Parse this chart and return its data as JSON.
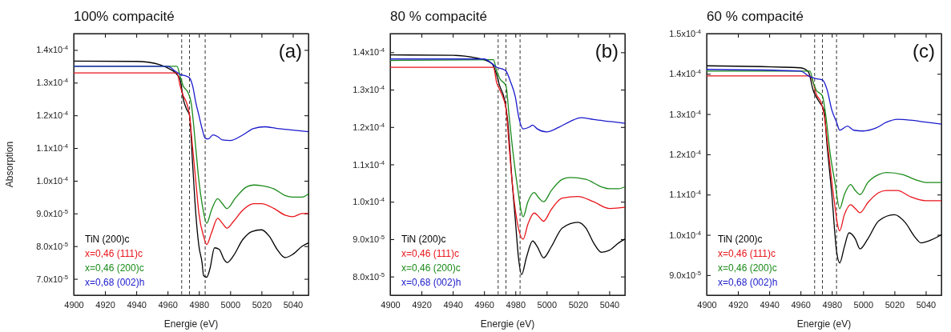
{
  "chart_data": [
    {
      "type": "line",
      "title": "100% compacité",
      "xlabel": "Energie (eV)",
      "ylabel": "Absorption",
      "annotations": [
        "(a)"
      ],
      "legend": "bottom left",
      "line_style": "solid",
      "marker": "none",
      "xlim": [
        4900,
        5050
      ],
      "xticks": [
        4900,
        4920,
        4940,
        4960,
        4980,
        5000,
        5020,
        5040
      ],
      "ylim": [
        6.5e-05,
        0.000145
      ],
      "yticks": [
        {
          "value": 7e-05,
          "label": "7.0x10$^{-5}$"
        },
        {
          "value": 8e-05,
          "label": "8.0x10$^{-5}$"
        },
        {
          "value": 9e-05,
          "label": "9.0x10$^{-5}$"
        },
        {
          "value": 0.0001,
          "label": "1.0x10$^{-4}$"
        },
        {
          "value": 0.00011,
          "label": "1.1x10$^{-4}$"
        },
        {
          "value": 0.00012,
          "label": "1.2x10$^{-4}$"
        },
        {
          "value": 0.00013,
          "label": "1.3x10$^{-4}$"
        },
        {
          "value": 0.00014,
          "label": "1.4x10$^{-4}$"
        }
      ],
      "ref_lines": [
        {
          "axis": "x",
          "value": 4969,
          "color": "#333333",
          "line_style": "dashed"
        },
        {
          "axis": "x",
          "value": 4974,
          "color": "#333333",
          "line_style": "dashed"
        },
        {
          "axis": "x",
          "value": 4984,
          "color": "#333333",
          "line_style": "dashed"
        }
      ],
      "series": [
        {
          "name": "TiN (200)c",
          "color": "#000000",
          "x": [
            4900,
            4940,
            4955,
            4960,
            4965,
            4968,
            4970,
            4972,
            4974,
            4976,
            4978,
            4980,
            4982,
            4983,
            4985,
            4987,
            4990,
            4993,
            4996,
            4998,
            5002,
            5008,
            5014,
            5020,
            5025,
            5030,
            5035,
            5040,
            5046,
            5050
          ],
          "values": [
            0.0001366,
            0.0001365,
            0.0001355,
            0.0001345,
            0.000133,
            0.000131,
            0.000125,
            0.000122,
            0.00012,
            0.000105,
            9e-05,
            8e-05,
            7.5e-05,
            7.1e-05,
            7.05e-05,
            7.3e-05,
            7.95e-05,
            7.9e-05,
            7.6e-05,
            7.5e-05,
            7.7e-05,
            8.2e-05,
            8.45e-05,
            8.5e-05,
            8.3e-05,
            7.9e-05,
            7.65e-05,
            7.75e-05,
            8e-05,
            8.1e-05
          ]
        },
        {
          "name": "x=0,46 (111)c",
          "color": "#e8141b",
          "x": [
            4900,
            4966,
            4968,
            4970,
            4972,
            4974,
            4976,
            4978,
            4980,
            4983,
            4985,
            4988,
            4992,
            4995,
            4998,
            5002,
            5008,
            5015,
            5020,
            5028,
            5035,
            5040,
            5046,
            5050
          ],
          "values": [
            0.000133,
            0.000133,
            0.000129,
            0.000126,
            0.000124,
            0.00012,
            0.00011,
            0.0001,
            9e-05,
            8.3e-05,
            8.05e-05,
            8.4e-05,
            8.85e-05,
            8.7e-05,
            8.55e-05,
            8.75e-05,
            9.1e-05,
            9.3e-05,
            9.3e-05,
            9.15e-05,
            8.95e-05,
            8.9e-05,
            9e-05,
            9e-05
          ]
        },
        {
          "name": "x=0,46 (200)c",
          "color": "#1a8a1a",
          "x": [
            4900,
            4966,
            4968,
            4970,
            4973,
            4975,
            4978,
            4980,
            4982,
            4985,
            4988,
            4992,
            4995,
            4998,
            5003,
            5010,
            5015,
            5020,
            5028,
            5035,
            5040,
            5046,
            5050
          ],
          "values": [
            0.000135,
            0.000135,
            0.000132,
            0.000129,
            0.000127,
            0.000124,
            0.00011,
            0.0001,
            9.3e-05,
            8.7e-05,
            9.1e-05,
            9.45e-05,
            9.3e-05,
            9.15e-05,
            9.45e-05,
            9.8e-05,
            9.87e-05,
            9.85e-05,
            9.75e-05,
            9.55e-05,
            9.5e-05,
            9.5e-05,
            9.6e-05
          ]
        },
        {
          "name": "x=0,68 (002)h",
          "color": "#1a1acc",
          "x": [
            4900,
            4960,
            4965,
            4968,
            4972,
            4974,
            4976,
            4978,
            4980,
            4982,
            4984,
            4986,
            4989,
            4992,
            4995,
            5000,
            5008,
            5015,
            5022,
            5030,
            5040,
            5050
          ],
          "values": [
            0.000135,
            0.000135,
            0.0001335,
            0.0001325,
            0.000132,
            0.0001315,
            0.000129,
            0.000124,
            0.00012,
            0.000116,
            0.000113,
            0.0001128,
            0.000114,
            0.0001135,
            0.0001125,
            0.0001123,
            0.000114,
            0.000116,
            0.0001165,
            0.000116,
            0.0001155,
            0.000115
          ]
        }
      ]
    },
    {
      "type": "line",
      "title": "80 % compacité",
      "xlabel": "Energie (eV)",
      "annotations": [
        "(b)"
      ],
      "legend": "bottom left",
      "line_style": "solid",
      "marker": "none",
      "xlim": [
        4900,
        5050
      ],
      "xticks": [
        4900,
        4920,
        4940,
        4960,
        4980,
        5000,
        5020,
        5040
      ],
      "ylim": [
        7.5e-05,
        0.000145
      ],
      "yticks": [
        {
          "value": 8e-05,
          "label": "8.0x10$^{-5}$"
        },
        {
          "value": 9e-05,
          "label": "9.0x10$^{-5}$"
        },
        {
          "value": 0.0001,
          "label": "1.0x10$^{-4}$"
        },
        {
          "value": 0.00011,
          "label": "1.1x10$^{-4}$"
        },
        {
          "value": 0.00012,
          "label": "1.2x10$^{-4}$"
        },
        {
          "value": 0.00013,
          "label": "1.3x10$^{-4}$"
        },
        {
          "value": 0.00014,
          "label": "1.4x10$^{-4}$"
        }
      ],
      "ref_lines": [
        {
          "axis": "x",
          "value": 4969,
          "color": "#333333",
          "line_style": "dashed"
        },
        {
          "axis": "x",
          "value": 4974,
          "color": "#333333",
          "line_style": "dashed"
        },
        {
          "axis": "x",
          "value": 4983,
          "color": "#333333",
          "line_style": "dashed"
        }
      ],
      "series": [
        {
          "name": "TiN (200)c",
          "color": "#000000",
          "x": [
            4900,
            4940,
            4955,
            4965,
            4968,
            4970,
            4973,
            4975,
            4978,
            4980,
            4982,
            4984,
            4987,
            4991,
            4994,
            4998,
            5003,
            5010,
            5020,
            5025,
            5030,
            5035,
            5040,
            5046,
            5050
          ],
          "values": [
            0.0001393,
            0.0001392,
            0.0001385,
            0.000137,
            0.000134,
            0.000131,
            0.0001275,
            0.000122,
            0.000105,
            9.5e-05,
            8.5e-05,
            8.05e-05,
            8.5e-05,
            8.95e-05,
            8.8e-05,
            8.5e-05,
            8.8e-05,
            9.3e-05,
            9.45e-05,
            9.3e-05,
            8.9e-05,
            8.65e-05,
            8.7e-05,
            8.9e-05,
            9e-05
          ]
        },
        {
          "name": "x=0,46 (111)c",
          "color": "#e8141b",
          "x": [
            4900,
            4966,
            4968,
            4970,
            4972,
            4974,
            4976,
            4978,
            4981,
            4985,
            4988,
            4992,
            4995,
            4998,
            5003,
            5010,
            5020,
            5030,
            5040,
            5050
          ],
          "values": [
            0.000136,
            0.000136,
            0.000132,
            0.00013,
            0.000128,
            0.000125,
            0.000115,
            0.000105,
            9.5e-05,
            9e-05,
            9.4e-05,
            9.7e-05,
            9.6e-05,
            9.48e-05,
            9.8e-05,
            0.000101,
            0.0001014,
            0.0001,
            9.82e-05,
            9.85e-05
          ]
        },
        {
          "name": "x=0,46 (200)c",
          "color": "#1a8a1a",
          "x": [
            4900,
            4966,
            4968,
            4970,
            4974,
            4976,
            4978,
            4981,
            4985,
            4988,
            4992,
            4995,
            4998,
            5003,
            5010,
            5015,
            5025,
            5035,
            5040,
            5046,
            5050
          ],
          "values": [
            0.0001378,
            0.000138,
            0.000135,
            0.000133,
            0.000131,
            0.000123,
            0.000115,
            0.000105,
            9.6e-05,
            0.0001,
            0.0001025,
            0.000101,
            0.0001,
            0.000103,
            0.000106,
            0.0001065,
            0.000106,
            0.000104,
            0.0001035,
            0.0001035,
            0.000104
          ]
        },
        {
          "name": "x=0,68 (002)h",
          "color": "#1a1acc",
          "x": [
            4900,
            4960,
            4965,
            4968,
            4972,
            4974,
            4977,
            4980,
            4982,
            4985,
            4989,
            4991,
            4994,
            5000,
            5008,
            5015,
            5022,
            5030,
            5040,
            5050
          ],
          "values": [
            0.0001382,
            0.0001382,
            0.000137,
            0.000136,
            0.0001355,
            0.000135,
            0.000132,
            0.000128,
            0.000123,
            0.0001195,
            0.00012,
            0.0001205,
            0.0001195,
            0.0001187,
            0.00012,
            0.0001215,
            0.0001225,
            0.000122,
            0.0001215,
            0.000121
          ]
        }
      ]
    },
    {
      "type": "line",
      "title": "60 % compacité",
      "xlabel": "Energie (eV)",
      "annotations": [
        "(c)"
      ],
      "legend": "bottom left",
      "line_style": "solid",
      "marker": "none",
      "xlim": [
        4900,
        5050
      ],
      "xticks": [
        4900,
        4920,
        4940,
        4960,
        4980,
        5000,
        5020,
        5040
      ],
      "ylim": [
        8.5e-05,
        0.00015
      ],
      "yticks": [
        {
          "value": 9e-05,
          "label": "9.0x10$^{-5}$"
        },
        {
          "value": 0.0001,
          "label": "1.0x10$^{-4}$"
        },
        {
          "value": 0.00011,
          "label": "1.1x10$^{-4}$"
        },
        {
          "value": 0.00012,
          "label": "1.2x10$^{-4}$"
        },
        {
          "value": 0.00013,
          "label": "1.3x10$^{-4}$"
        },
        {
          "value": 0.00014,
          "label": "1.4x10$^{-4}$"
        },
        {
          "value": 0.00015,
          "label": "1.5x10$^{-4}$"
        }
      ],
      "ref_lines": [
        {
          "axis": "x",
          "value": 4969,
          "color": "#333333",
          "line_style": "dashed"
        },
        {
          "axis": "x",
          "value": 4974,
          "color": "#333333",
          "line_style": "dashed"
        },
        {
          "axis": "x",
          "value": 4983,
          "color": "#333333",
          "line_style": "dashed"
        }
      ],
      "series": [
        {
          "name": "TiN (200)c",
          "color": "#000000",
          "x": [
            4900,
            4960,
            4965,
            4968,
            4972,
            4975,
            4977,
            4980,
            4983,
            4985,
            4988,
            4991,
            4995,
            4998,
            5003,
            5010,
            5020,
            5027,
            5033,
            5037,
            5042,
            5050
          ],
          "values": [
            0.000142,
            0.0001415,
            0.0001405,
            0.000136,
            0.000133,
            0.000131,
            0.000122,
            0.00011,
            9.6e-05,
            9.3e-05,
            9.7e-05,
            0.0001005,
            9.9e-05,
            9.65e-05,
            9.9e-05,
            0.0001035,
            0.000105,
            0.000103,
            9.95e-05,
            9.8e-05,
            9.85e-05,
            0.0001
          ]
        },
        {
          "name": "x=0,46 (111)c",
          "color": "#e8141b",
          "x": [
            4900,
            4966,
            4968,
            4970,
            4973,
            4975,
            4978,
            4981,
            4985,
            4988,
            4992,
            4995,
            4998,
            5003,
            5010,
            5015,
            5022,
            5030,
            5040,
            5050
          ],
          "values": [
            0.0001395,
            0.0001395,
            0.000138,
            0.000135,
            0.000133,
            0.00013,
            0.00012,
            0.00011,
            0.000101,
            0.000105,
            0.0001075,
            0.0001065,
            0.0001055,
            0.000108,
            0.0001105,
            0.000111,
            0.000111,
            0.0001095,
            0.0001085,
            0.0001085
          ]
        },
        {
          "name": "x=0,46 (200)c",
          "color": "#1a8a1a",
          "x": [
            4900,
            4966,
            4968,
            4970,
            4974,
            4976,
            4979,
            4982,
            4985,
            4988,
            4992,
            4995,
            4998,
            5003,
            5010,
            5015,
            5025,
            5035,
            5040,
            5050
          ],
          "values": [
            0.0001407,
            0.0001407,
            0.000138,
            0.000136,
            0.0001345,
            0.00013,
            0.00012,
            0.000113,
            0.0001065,
            0.00011,
            0.0001125,
            0.000111,
            0.00011,
            0.000113,
            0.000115,
            0.0001155,
            0.000115,
            0.0001135,
            0.000113,
            0.000113
          ]
        },
        {
          "name": "x=0,68 (002)h",
          "color": "#1a1acc",
          "x": [
            4900,
            4960,
            4965,
            4970,
            4974,
            4977,
            4980,
            4983,
            4985,
            4990,
            4994,
            5000,
            5008,
            5015,
            5022,
            5030,
            5040,
            5050
          ],
          "values": [
            0.0001411,
            0.0001407,
            0.0001395,
            0.0001388,
            0.0001385,
            0.000136,
            0.000131,
            0.000128,
            0.000126,
            0.000127,
            0.000126,
            0.0001258,
            0.0001265,
            0.000128,
            0.0001287,
            0.0001285,
            0.000128,
            0.0001275
          ]
        }
      ]
    }
  ]
}
